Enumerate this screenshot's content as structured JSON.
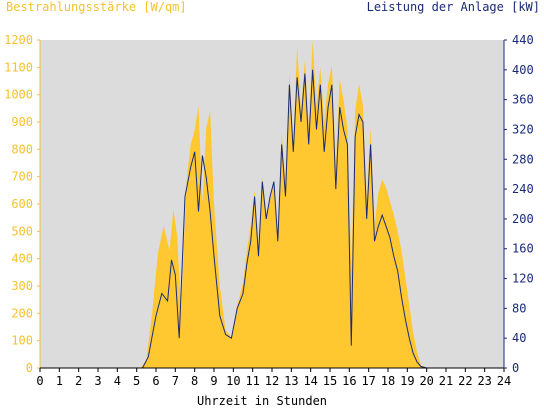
{
  "chart_data": {
    "type": "area",
    "title": "",
    "y_left_label": "Bestrahlungsstärke [W/qm]",
    "y_right_label": "Leistung der Anlage [kW]",
    "xlabel": "Uhrzeit in Stunden",
    "xlim": [
      0,
      24
    ],
    "ylim_left": [
      0,
      1200
    ],
    "ylim_right": [
      0,
      440
    ],
    "x_ticks": [
      "0",
      "1",
      "2",
      "3",
      "4",
      "5",
      "6",
      "7",
      "8",
      "9",
      "10",
      "11",
      "12",
      "13",
      "14",
      "15",
      "16",
      "17",
      "18",
      "19",
      "20",
      "21",
      "22",
      "23",
      "24"
    ],
    "y_left_ticks": [
      "0",
      "100",
      "200",
      "300",
      "400",
      "500",
      "600",
      "700",
      "800",
      "900",
      "1000",
      "1100",
      "1200"
    ],
    "y_right_ticks": [
      "0",
      "40",
      "80",
      "120",
      "160",
      "200",
      "240",
      "280",
      "320",
      "360",
      "400",
      "440"
    ],
    "grid": false,
    "colors": {
      "irradiance": "#ffc830",
      "power": "#1a2a78",
      "plot_bg": "#dcdcdc",
      "left_axis_text": "#f5c22e",
      "right_axis_text": "#1a2a78"
    },
    "series": [
      {
        "name": "Bestrahlungsstärke [W/qm]",
        "axis": "left",
        "points": [
          [
            0,
            0
          ],
          [
            5.2,
            0
          ],
          [
            5.5,
            30
          ],
          [
            5.8,
            200
          ],
          [
            6.1,
            420
          ],
          [
            6.4,
            520
          ],
          [
            6.7,
            430
          ],
          [
            6.9,
            580
          ],
          [
            7.1,
            480
          ],
          [
            7.3,
            200
          ],
          [
            7.6,
            700
          ],
          [
            7.8,
            820
          ],
          [
            8.0,
            870
          ],
          [
            8.2,
            960
          ],
          [
            8.4,
            600
          ],
          [
            8.6,
            880
          ],
          [
            8.8,
            940
          ],
          [
            9.0,
            600
          ],
          [
            9.3,
            300
          ],
          [
            9.6,
            140
          ],
          [
            9.9,
            110
          ],
          [
            10.2,
            230
          ],
          [
            10.5,
            310
          ],
          [
            10.7,
            430
          ],
          [
            10.9,
            520
          ],
          [
            11.1,
            650
          ],
          [
            11.3,
            450
          ],
          [
            11.5,
            700
          ],
          [
            11.7,
            560
          ],
          [
            11.9,
            610
          ],
          [
            12.1,
            680
          ],
          [
            12.3,
            500
          ],
          [
            12.5,
            860
          ],
          [
            12.7,
            680
          ],
          [
            12.9,
            1080
          ],
          [
            13.1,
            820
          ],
          [
            13.3,
            1180
          ],
          [
            13.5,
            940
          ],
          [
            13.7,
            1130
          ],
          [
            13.9,
            880
          ],
          [
            14.1,
            1200
          ],
          [
            14.3,
            960
          ],
          [
            14.5,
            1100
          ],
          [
            14.7,
            900
          ],
          [
            14.9,
            1040
          ],
          [
            15.1,
            1110
          ],
          [
            15.3,
            740
          ],
          [
            15.5,
            1060
          ],
          [
            15.7,
            980
          ],
          [
            15.9,
            880
          ],
          [
            16.1,
            360
          ],
          [
            16.3,
            940
          ],
          [
            16.5,
            1040
          ],
          [
            16.7,
            960
          ],
          [
            16.9,
            620
          ],
          [
            17.1,
            880
          ],
          [
            17.3,
            520
          ],
          [
            17.5,
            640
          ],
          [
            17.7,
            690
          ],
          [
            17.9,
            660
          ],
          [
            18.1,
            610
          ],
          [
            18.3,
            560
          ],
          [
            18.5,
            500
          ],
          [
            18.7,
            430
          ],
          [
            18.9,
            330
          ],
          [
            19.1,
            230
          ],
          [
            19.3,
            130
          ],
          [
            19.5,
            60
          ],
          [
            19.7,
            10
          ],
          [
            20.0,
            0
          ],
          [
            24,
            0
          ]
        ]
      },
      {
        "name": "Leistung der Anlage [kW]",
        "axis": "right",
        "points": [
          [
            0,
            0
          ],
          [
            5.3,
            0
          ],
          [
            5.6,
            15
          ],
          [
            6.0,
            70
          ],
          [
            6.3,
            100
          ],
          [
            6.6,
            90
          ],
          [
            6.8,
            145
          ],
          [
            7.0,
            125
          ],
          [
            7.2,
            40
          ],
          [
            7.5,
            230
          ],
          [
            7.8,
            270
          ],
          [
            8.0,
            290
          ],
          [
            8.2,
            210
          ],
          [
            8.4,
            285
          ],
          [
            8.6,
            255
          ],
          [
            8.8,
            210
          ],
          [
            9.0,
            150
          ],
          [
            9.3,
            70
          ],
          [
            9.6,
            45
          ],
          [
            9.9,
            40
          ],
          [
            10.2,
            80
          ],
          [
            10.5,
            100
          ],
          [
            10.7,
            140
          ],
          [
            10.9,
            170
          ],
          [
            11.1,
            230
          ],
          [
            11.3,
            150
          ],
          [
            11.5,
            250
          ],
          [
            11.7,
            200
          ],
          [
            11.9,
            230
          ],
          [
            12.1,
            250
          ],
          [
            12.3,
            170
          ],
          [
            12.5,
            300
          ],
          [
            12.7,
            230
          ],
          [
            12.9,
            380
          ],
          [
            13.1,
            290
          ],
          [
            13.3,
            390
          ],
          [
            13.5,
            330
          ],
          [
            13.7,
            395
          ],
          [
            13.9,
            300
          ],
          [
            14.1,
            400
          ],
          [
            14.3,
            320
          ],
          [
            14.5,
            380
          ],
          [
            14.7,
            290
          ],
          [
            14.9,
            350
          ],
          [
            15.1,
            380
          ],
          [
            15.3,
            240
          ],
          [
            15.5,
            350
          ],
          [
            15.7,
            320
          ],
          [
            15.9,
            300
          ],
          [
            16.1,
            30
          ],
          [
            16.3,
            310
          ],
          [
            16.5,
            340
          ],
          [
            16.7,
            330
          ],
          [
            16.9,
            200
          ],
          [
            17.1,
            300
          ],
          [
            17.3,
            170
          ],
          [
            17.5,
            190
          ],
          [
            17.7,
            205
          ],
          [
            17.9,
            190
          ],
          [
            18.1,
            175
          ],
          [
            18.3,
            150
          ],
          [
            18.5,
            130
          ],
          [
            18.7,
            95
          ],
          [
            18.9,
            65
          ],
          [
            19.1,
            40
          ],
          [
            19.3,
            20
          ],
          [
            19.5,
            8
          ],
          [
            19.7,
            2
          ],
          [
            20.0,
            0
          ],
          [
            24,
            0
          ]
        ]
      }
    ]
  }
}
